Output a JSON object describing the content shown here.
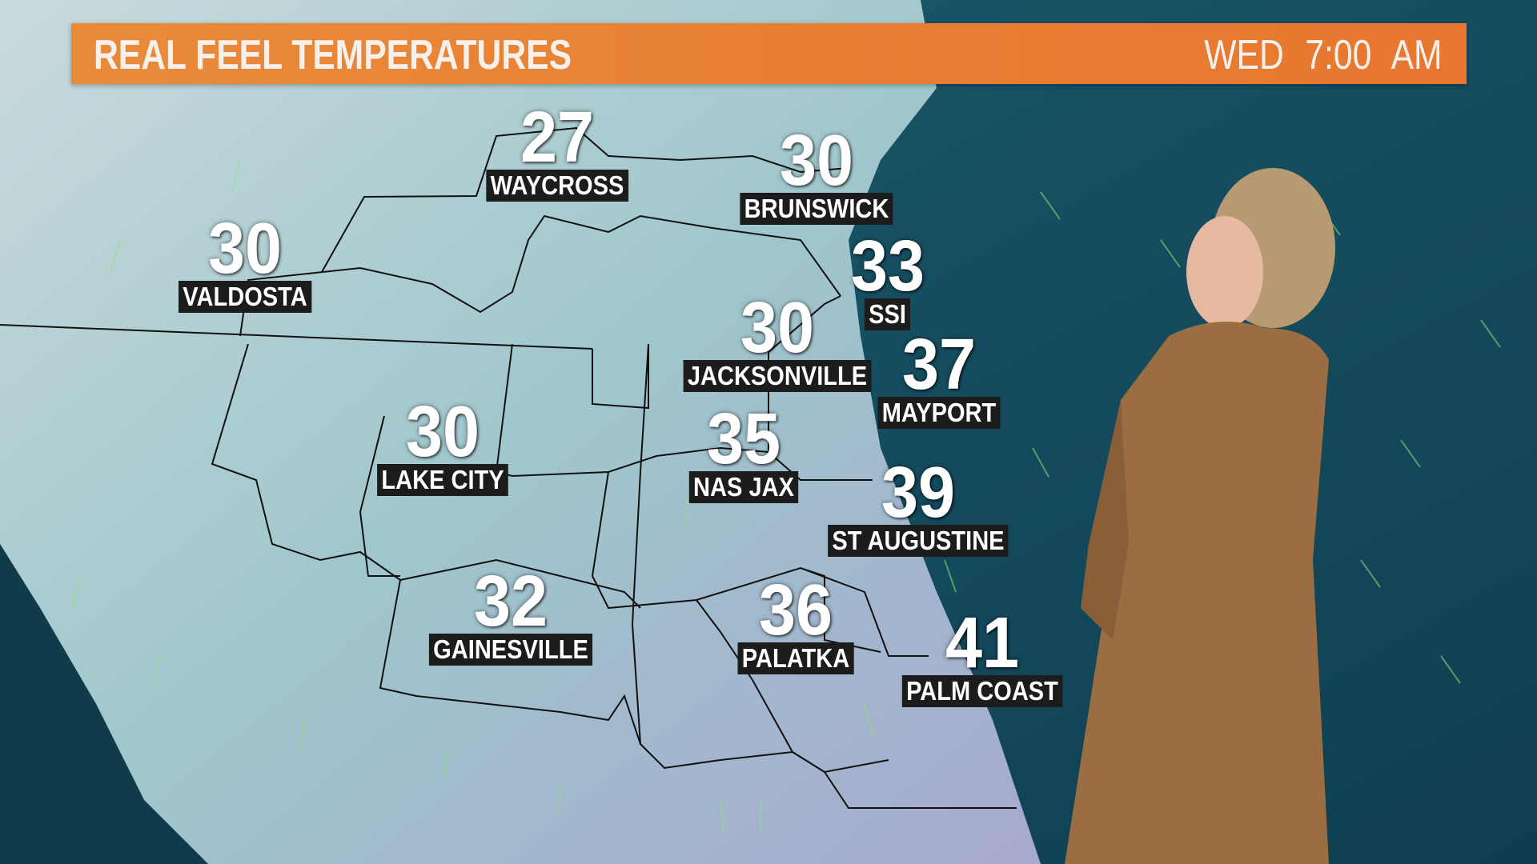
{
  "banner": {
    "title": "REAL FEEL TEMPERATURES",
    "day": "WED",
    "time": "7:00 AM",
    "color": "#e8822f"
  },
  "colors": {
    "land": "#a9ccd0",
    "ocean": "#124a5c",
    "wind_arrows": "#8fe07a"
  },
  "cities": [
    {
      "name": "WAYCROSS",
      "temp": "27"
    },
    {
      "name": "BRUNSWICK",
      "temp": "30"
    },
    {
      "name": "VALDOSTA",
      "temp": "30"
    },
    {
      "name": "SSI",
      "temp": "33"
    },
    {
      "name": "JACKSONVILLE",
      "temp": "30"
    },
    {
      "name": "MAYPORT",
      "temp": "37"
    },
    {
      "name": "LAKE CITY",
      "temp": "30"
    },
    {
      "name": "NAS JAX",
      "temp": "35"
    },
    {
      "name": "ST AUGUSTINE",
      "temp": "39"
    },
    {
      "name": "GAINESVILLE",
      "temp": "32"
    },
    {
      "name": "PALATKA",
      "temp": "36"
    },
    {
      "name": "PALM COAST",
      "temp": "41"
    }
  ]
}
